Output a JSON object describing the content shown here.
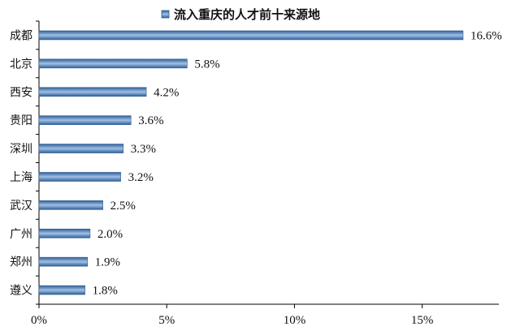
{
  "chart_data": {
    "type": "bar",
    "orientation": "horizontal",
    "legend": "流入重庆的人才前十来源地",
    "legend_position": "top",
    "categories": [
      "成都",
      "北京",
      "西安",
      "贵阳",
      "深圳",
      "上海",
      "武汉",
      "广州",
      "郑州",
      "遵义"
    ],
    "values": [
      16.6,
      5.8,
      4.2,
      3.6,
      3.3,
      3.2,
      2.5,
      2.0,
      1.9,
      1.8
    ],
    "value_labels": [
      "16.6%",
      "5.8%",
      "4.2%",
      "3.6%",
      "3.3%",
      "3.2%",
      "2.5%",
      "2.0%",
      "1.9%",
      "1.8%"
    ],
    "x_ticks": [
      "0%",
      "5%",
      "10%",
      "15%"
    ],
    "xlim": [
      0,
      18
    ],
    "grid": false,
    "colors": {
      "bar_fill_start": "#2f5f95",
      "bar_fill_mid": "#9fc0e6",
      "bar_fill_end": "#2f5f95",
      "bar_border": "#2f5f95",
      "axis": "#000000",
      "text": "#111111"
    }
  }
}
